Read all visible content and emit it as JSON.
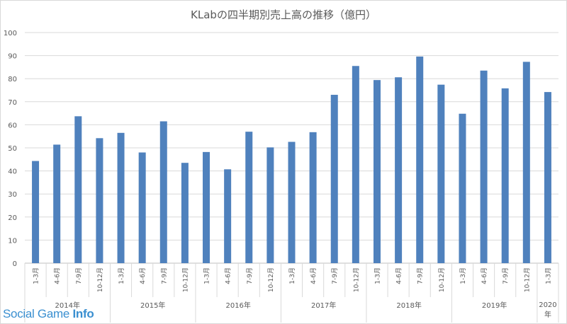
{
  "chart_data": {
    "type": "bar",
    "title": "KLabの四半期別売上高の推移（億円）",
    "ylim": [
      0,
      100
    ],
    "yticks": [
      0,
      10,
      20,
      30,
      40,
      50,
      60,
      70,
      80,
      90,
      100
    ],
    "grid": true,
    "bar_color": "#4f81bd",
    "categories": [
      "1-3月",
      "4-6月",
      "7-9月",
      "10-12月",
      "1-3月",
      "4-6月",
      "7-9月",
      "10-12月",
      "1-3月",
      "4-6月",
      "7-9月",
      "10-12月",
      "1-3月",
      "4-6月",
      "7-9月",
      "10-12月",
      "1-3月",
      "4-6月",
      "7-9月",
      "10-12月",
      "1-3月",
      "4-6月",
      "7-9月",
      "10-12月",
      "1-3月"
    ],
    "values": [
      44.3,
      51.4,
      63.7,
      54.2,
      56.5,
      48.0,
      61.5,
      43.5,
      48.2,
      40.7,
      57.0,
      50.2,
      52.6,
      56.8,
      73.0,
      85.5,
      79.4,
      80.6,
      89.6,
      77.4,
      64.8,
      83.5,
      75.8,
      87.3,
      74.2
    ],
    "groups": [
      {
        "label": "2014年",
        "count": 4
      },
      {
        "label": "2015年",
        "count": 4
      },
      {
        "label": "2016年",
        "count": 4
      },
      {
        "label": "2017年",
        "count": 4
      },
      {
        "label": "2018年",
        "count": 4
      },
      {
        "label": "2019年",
        "count": 4
      },
      {
        "label": "2020年",
        "count": 1
      }
    ]
  },
  "watermark": {
    "text_main": "Social Game ",
    "text_bold": "Info"
  },
  "colors": {
    "axis_text": "#595959",
    "grid": "#d9d9d9",
    "watermark": "#3a8fd0"
  }
}
